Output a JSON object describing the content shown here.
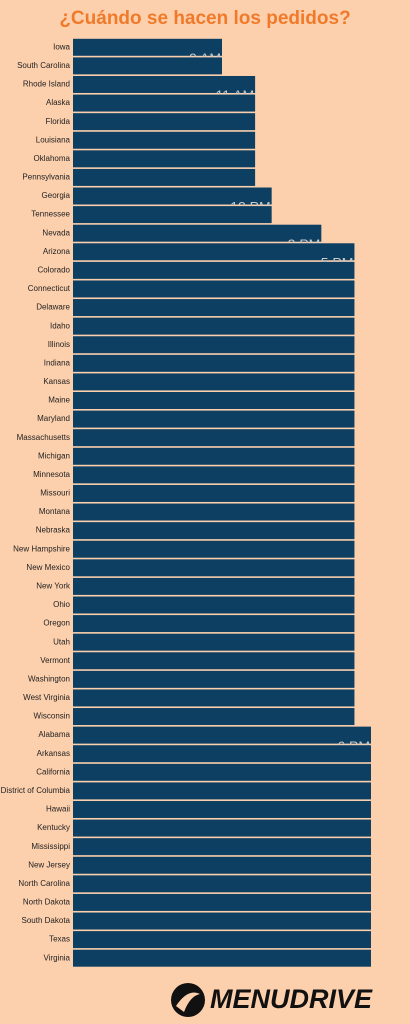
{
  "chart_data": {
    "type": "bar",
    "orientation": "horizontal",
    "title": "¿Cuándo se hacen los pedidos?",
    "categories": [
      "Iowa",
      "South Carolina",
      "Rhode Island",
      "Alaska",
      "Florida",
      "Louisiana",
      "Oklahoma",
      "Pennsylvania",
      "Georgia",
      "Tennessee",
      "Nevada",
      "Arizona",
      "Colorado",
      "Connecticut",
      "Delaware",
      "Idaho",
      "Illinois",
      "Indiana",
      "Kansas",
      "Maine",
      "Maryland",
      "Massachusetts",
      "Michigan",
      "Minnesota",
      "Missouri",
      "Montana",
      "Nebraska",
      "New Hampshire",
      "New Mexico",
      "New York",
      "Ohio",
      "Oregon",
      "Utah",
      "Vermont",
      "Washington",
      "West Virginia",
      "Wisconsin",
      "Alabama",
      "Arkansas",
      "California",
      "District of Columbia",
      "Hawaii",
      "Kentucky",
      "Mississippi",
      "New Jersey",
      "North Carolina",
      "North Dakota",
      "South Dakota",
      "Texas",
      "Virginia"
    ],
    "values": [
      9,
      9,
      11,
      11,
      11,
      11,
      11,
      11,
      12,
      12,
      15,
      17,
      17,
      17,
      17,
      17,
      17,
      17,
      17,
      17,
      17,
      17,
      17,
      17,
      17,
      17,
      17,
      17,
      17,
      17,
      17,
      17,
      17,
      17,
      17,
      17,
      17,
      18,
      18,
      18,
      18,
      18,
      18,
      18,
      18,
      18,
      18,
      18,
      18,
      18
    ],
    "value_labels": [
      "9 AM",
      null,
      "11 AM",
      null,
      null,
      null,
      null,
      null,
      "12 PM",
      null,
      "3 PM",
      "5 PM",
      null,
      null,
      null,
      null,
      null,
      null,
      null,
      null,
      null,
      null,
      null,
      null,
      null,
      null,
      null,
      null,
      null,
      null,
      null,
      null,
      null,
      null,
      null,
      null,
      null,
      "6 PM",
      null,
      null,
      null,
      null,
      null,
      null,
      null,
      null,
      null,
      null,
      null,
      null
    ],
    "color": "#0c3f62"
  },
  "logo": "MENUDRIVE"
}
